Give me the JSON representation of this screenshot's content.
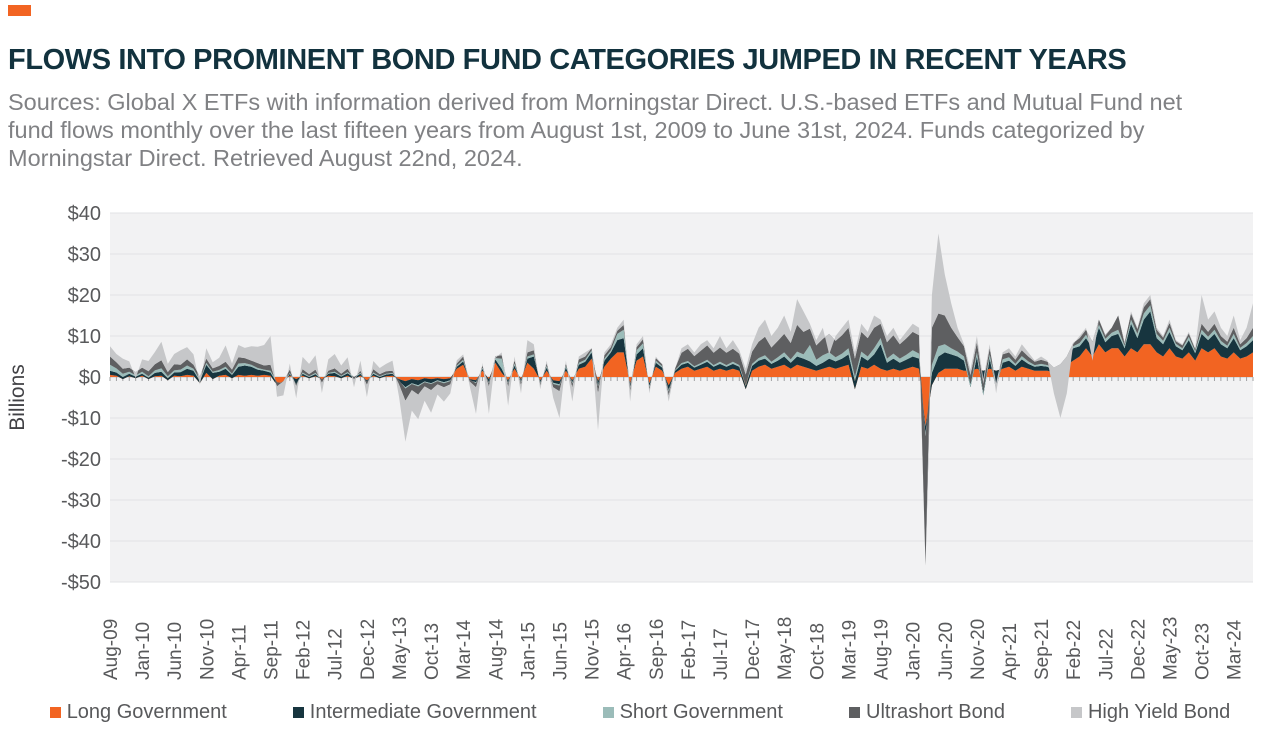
{
  "accent_color": "#F26422",
  "title_color": "#12323E",
  "header": {
    "title": "FLOWS INTO PROMINENT BOND FUND CATEGORIES JUMPED IN RECENT YEARS",
    "source": "Sources: Global X ETFs with information derived from Morningstar Direct. U.S.-based ETFs and Mutual Fund net fund flows monthly over the last fifteen years from August 1st, 2009 to June 31st, 2024. Funds categorized by Morningstar Direct. Retrieved August 22nd, 2024."
  },
  "chart_data": {
    "type": "area",
    "stacked": true,
    "ylabel": "Billions",
    "ylim": [
      -50,
      40
    ],
    "ytick_labels": [
      "$40",
      "$30",
      "$20",
      "$10",
      "$0",
      "-$10",
      "-$20",
      "-$30",
      "-$40",
      "-$50"
    ],
    "x_label_every": 5,
    "x_labels": [
      "Aug-09",
      "Jan-10",
      "Jun-10",
      "Nov-10",
      "Apr-11",
      "Sep-11",
      "Feb-12",
      "Jul-12",
      "Dec-12",
      "May-13",
      "Oct-13",
      "Mar-14",
      "Aug-14",
      "Jan-15",
      "Jun-15",
      "Nov-15",
      "Apr-16",
      "Sep-16",
      "Feb-17",
      "Jul-17",
      "Dec-17",
      "May-18",
      "Oct-18",
      "Mar-19",
      "Aug-19",
      "Jan-20",
      "Jun-20",
      "Nov-20",
      "Apr-21",
      "Sep-21",
      "Feb-22",
      "Jul-22",
      "Dec-22",
      "May-23",
      "Oct-23",
      "Mar-24"
    ],
    "grid": true,
    "plot_bg": "#F2F2F3",
    "grid_color": "#E2E3E4",
    "zero_line_color": "#C8C9CB",
    "tick_color": "#9FA0A2",
    "axis_text_color": "#58595B",
    "series": [
      {
        "name": "Long Government",
        "color": "#F26422",
        "values": [
          0.5,
          0.3,
          -0.5,
          0.2,
          -0.3,
          0.3,
          -0.5,
          0.2,
          0.3,
          -0.8,
          0.3,
          0.2,
          0.5,
          0.3,
          -1.5,
          1,
          -0.5,
          0.3,
          0.5,
          -0.3,
          0.5,
          0.3,
          0.5,
          0.3,
          0.5,
          0.3,
          -2,
          -1,
          0.3,
          -0.5,
          0.3,
          -0.3,
          0.2,
          -0.5,
          0.3,
          0.2,
          -0.3,
          0.3,
          -0.5,
          0.3,
          -0.8,
          0.3,
          -0.3,
          0.2,
          0.3,
          -0.5,
          -1,
          -0.5,
          -0.8,
          -0.3,
          -0.5,
          -0.3,
          -0.5,
          -0.3,
          2,
          3,
          -0.5,
          -0.8,
          1.5,
          -0.5,
          3.5,
          1,
          -0.8,
          2,
          -0.5,
          3.5,
          2,
          -0.8,
          1.5,
          -0.8,
          -1,
          1.5,
          -0.8,
          2,
          2.5,
          4.5,
          -1,
          2.5,
          4.5,
          6,
          6,
          -1.5,
          4,
          5,
          -1.5,
          2.5,
          1.5,
          -2,
          1,
          2,
          2.5,
          1.5,
          2,
          2.5,
          1.5,
          2,
          1.5,
          2,
          1.5,
          -3,
          1.5,
          2.5,
          3,
          2,
          2.5,
          3,
          2,
          3,
          2.5,
          2,
          1.5,
          2,
          2.5,
          2,
          2.5,
          3,
          -3,
          2.5,
          2,
          3,
          2,
          1.5,
          2,
          1.5,
          2,
          2.5,
          2,
          -12,
          -2,
          1,
          2,
          2,
          2,
          1.5,
          1.5,
          2,
          1.5,
          2,
          1.5,
          2,
          2.5,
          1.5,
          2.5,
          2,
          1.5,
          1.5,
          1.5,
          1,
          1.5,
          3,
          4,
          5,
          7,
          5,
          8,
          6,
          7,
          7,
          5,
          7,
          6,
          8,
          8,
          6,
          5,
          7,
          5,
          4.5,
          6,
          4,
          7,
          6,
          7,
          5,
          4.5,
          6,
          4.5,
          5,
          6
        ]
      },
      {
        "name": "Intermediate Government",
        "color": "#17353F",
        "values": [
          1,
          0.8,
          0.5,
          0.6,
          0.4,
          0.5,
          0.3,
          0.8,
          1,
          0.5,
          0.8,
          1,
          1.5,
          1.2,
          0.5,
          2,
          1.5,
          1,
          1.5,
          0.8,
          2,
          2.5,
          2,
          1.5,
          1,
          0.8,
          0.5,
          -0.8,
          0.5,
          -1.5,
          0.5,
          0.3,
          0.5,
          -0.3,
          0.5,
          0.8,
          0.4,
          0.6,
          0.3,
          0.5,
          -0.5,
          0.5,
          0.3,
          0.4,
          0.5,
          -0.5,
          -1.5,
          -1,
          -1.2,
          -0.8,
          -1,
          -0.5,
          -0.8,
          -0.5,
          0.5,
          0.8,
          -0.3,
          -0.5,
          0.5,
          -0.8,
          0.8,
          1,
          -0.5,
          0.8,
          -0.5,
          1,
          3,
          -0.5,
          0.8,
          -0.6,
          -0.8,
          0.8,
          -0.5,
          1,
          1.2,
          1.5,
          -1,
          1.5,
          1.5,
          3,
          3.5,
          -0.8,
          1.5,
          2,
          -0.8,
          1,
          0.8,
          -1.2,
          0.5,
          1,
          1,
          0.8,
          1,
          1.2,
          1,
          1.2,
          1,
          1.2,
          1,
          0.8,
          1.2,
          1.5,
          1.5,
          1.2,
          1.5,
          2,
          1.5,
          2,
          2,
          1.8,
          1.2,
          1.5,
          2,
          1.8,
          2,
          2.5,
          2,
          2.5,
          2,
          2.5,
          6,
          2,
          2.5,
          2,
          2.2,
          2.5,
          2.5,
          -2,
          3,
          4,
          4,
          3.5,
          3,
          2.5,
          -4,
          3,
          -6,
          2.5,
          -4.5,
          1.5,
          1.5,
          1.2,
          1.8,
          1.2,
          1,
          1.2,
          1,
          0.5,
          0.8,
          1,
          3,
          2.5,
          2.5,
          2,
          4,
          2.5,
          3,
          3.5,
          2,
          6,
          3.5,
          6,
          8,
          3.5,
          3,
          4,
          2.5,
          2,
          3,
          1.8,
          3.5,
          3,
          3.5,
          3,
          2.5,
          3.5,
          2,
          2.5,
          3
        ]
      },
      {
        "name": "Short Government",
        "color": "#9BBCB9",
        "values": [
          1.5,
          1,
          0.8,
          0.5,
          0.3,
          0.5,
          0.4,
          0.6,
          0.8,
          0.5,
          0.5,
          0.6,
          0.8,
          0.5,
          0.3,
          0.5,
          0.3,
          0.4,
          0.5,
          0.3,
          0.8,
          0.6,
          0.5,
          0.4,
          0.3,
          0.4,
          0.2,
          0.3,
          0.2,
          0.3,
          0.3,
          0.2,
          0.3,
          0.2,
          0.2,
          0.3,
          0.2,
          0.3,
          0.2,
          0.2,
          0.2,
          0.3,
          0.2,
          0.2,
          0.2,
          0.2,
          -0.3,
          -0.2,
          -0.3,
          -0.2,
          -0.2,
          -0.2,
          -0.2,
          -0.2,
          0.3,
          0.4,
          0.2,
          -0.2,
          0.3,
          -0.2,
          0.3,
          2.5,
          -0.3,
          0.5,
          -0.3,
          0.5,
          0.5,
          -0.2,
          0.4,
          -0.3,
          -0.3,
          0.4,
          -0.3,
          0.5,
          0.5,
          0.5,
          -0.4,
          0.5,
          0.5,
          1.5,
          2,
          -0.3,
          1,
          1.2,
          -0.3,
          0.5,
          0.3,
          -0.4,
          0.2,
          0.4,
          0.4,
          0.3,
          0.4,
          0.5,
          0.4,
          0.5,
          0.4,
          0.5,
          0.4,
          0.3,
          0.5,
          0.6,
          0.8,
          0.5,
          0.8,
          1,
          0.8,
          1.2,
          1,
          4,
          1.5,
          1.8,
          1.5,
          1,
          1.2,
          1.5,
          1,
          1.2,
          1,
          1.5,
          1.5,
          1,
          1.2,
          1,
          1.2,
          1.5,
          1.2,
          -0.5,
          2,
          2.5,
          2,
          1.5,
          1.2,
          1,
          0.8,
          1,
          0.8,
          1,
          0.5,
          0.8,
          0.8,
          0.5,
          0.8,
          0.6,
          0.4,
          0.5,
          0.4,
          0.3,
          0.3,
          0.4,
          0.5,
          0.8,
          0.8,
          0.6,
          0.8,
          0.8,
          0.8,
          1,
          0.6,
          1,
          1,
          1.5,
          1.5,
          1,
          0.8,
          1,
          0.6,
          0.5,
          0.8,
          0.5,
          1,
          0.8,
          1,
          0.8,
          0.6,
          1,
          0.6,
          0.8,
          1
        ]
      },
      {
        "name": "Ultrashort Bond",
        "color": "#5E5F61",
        "values": [
          2,
          1.5,
          1.2,
          1,
          0.8,
          1,
          1.2,
          1.5,
          2,
          1,
          1.5,
          1.2,
          1.5,
          1,
          0.8,
          1,
          0.8,
          1,
          1.2,
          1,
          1.5,
          1.2,
          1,
          1.2,
          1,
          1.5,
          -1,
          0.5,
          0.8,
          -0.5,
          0.8,
          0.5,
          0.8,
          -0.8,
          0.5,
          0.8,
          0.5,
          0.8,
          -0.5,
          0.5,
          -0.8,
          0.8,
          0.5,
          0.6,
          0.5,
          -1,
          -3,
          -1.5,
          -2,
          -1,
          -1.5,
          -0.8,
          -1,
          -0.8,
          0.5,
          0.8,
          -0.5,
          -1,
          0.5,
          -0.8,
          0.5,
          0.8,
          -0.8,
          0.8,
          -0.7,
          1,
          1,
          -0.5,
          0.6,
          -0.8,
          -1.4,
          0.6,
          -0.9,
          0.8,
          0.8,
          0.5,
          -1.6,
          0.8,
          0.8,
          0.8,
          1.2,
          -0.9,
          0.8,
          1,
          -0.6,
          0.6,
          0.5,
          -0.9,
          0.4,
          2.5,
          3,
          2.5,
          3,
          3.5,
          3,
          3.5,
          3,
          3.2,
          2.8,
          2.5,
          3,
          4,
          4.5,
          3.5,
          4,
          4.5,
          4,
          6.5,
          5.5,
          4,
          3.5,
          4,
          4.5,
          4,
          4.5,
          5,
          4.5,
          4.8,
          4.5,
          5,
          3.5,
          4,
          4.5,
          3.5,
          4,
          4.5,
          4.5,
          -31.5,
          9,
          8,
          7,
          5,
          3.5,
          2.5,
          2,
          2.5,
          2,
          1.5,
          1,
          1.2,
          1.2,
          1,
          1.4,
          1.2,
          0.8,
          1,
          0.8,
          0.5,
          0.5,
          0.6,
          0.8,
          1.2,
          1.2,
          1,
          1.2,
          1,
          1.2,
          3.5,
          0.8,
          1.5,
          1.2,
          1.5,
          1.5,
          1,
          0.8,
          1.2,
          0.6,
          0.7,
          0.8,
          0.5,
          1.5,
          1.2,
          1.5,
          1.2,
          1,
          1.5,
          0.9,
          1.2,
          2
        ]
      },
      {
        "name": "High Yield Bond",
        "color": "#C6C7C9",
        "values": [
          2.5,
          2,
          2.5,
          1.5,
          -1.5,
          2,
          2.5,
          3,
          4.5,
          2,
          2.5,
          3.5,
          3,
          2.5,
          -2,
          2.5,
          1.5,
          2,
          4,
          1.5,
          3,
          2.5,
          3.5,
          4,
          5,
          7,
          -2.5,
          -3.5,
          1.5,
          -3,
          3,
          2.5,
          3.5,
          -2.5,
          2.8,
          3.5,
          2,
          2.8,
          -2,
          2.5,
          -3,
          2,
          1.5,
          1.8,
          2.5,
          -3,
          -10,
          -5,
          -6,
          -3.5,
          -5.5,
          -2.5,
          -3.5,
          -2.2,
          0.8,
          0.5,
          -1,
          -6.5,
          0.7,
          -6.7,
          -0.5,
          0.7,
          -4.6,
          0.9,
          -2,
          3,
          1.5,
          -1,
          0.7,
          -2.5,
          -6.5,
          0.7,
          -3.5,
          0.7,
          1,
          0,
          -9,
          0.7,
          0.7,
          0.7,
          1.3,
          -2.5,
          0.7,
          0.8,
          -0.8,
          0.4,
          -0.1,
          -1.5,
          -0.1,
          1.1,
          1.1,
          0.9,
          1.6,
          1.3,
          1.1,
          2.8,
          1.1,
          2.1,
          0.8,
          1.4,
          1.8,
          3.4,
          4.2,
          2.8,
          3.2,
          4.5,
          2.7,
          6.3,
          5,
          1.2,
          1.3,
          2.7,
          -5,
          1.2,
          1.8,
          2,
          1.5,
          2,
          1.5,
          3,
          1,
          1.5,
          1.8,
          1,
          1.6,
          2,
          1.8,
          0,
          8,
          19.5,
          10,
          6,
          2.3,
          0.5,
          1.5,
          1.5,
          1.2,
          1,
          -2.5,
          0.5,
          1,
          0.8,
          1.5,
          1,
          0.3,
          0.8,
          0.3,
          -6.3,
          -13.1,
          -9,
          -0.3,
          0.5,
          0.5,
          -4.6,
          0,
          -0.3,
          0,
          0,
          -0.4,
          0.5,
          0.3,
          1,
          1,
          0.5,
          0.4,
          0.8,
          0.3,
          0.3,
          0.4,
          0.2,
          7,
          3,
          3,
          2,
          1.4,
          3,
          1,
          2.5,
          6
        ]
      }
    ]
  }
}
